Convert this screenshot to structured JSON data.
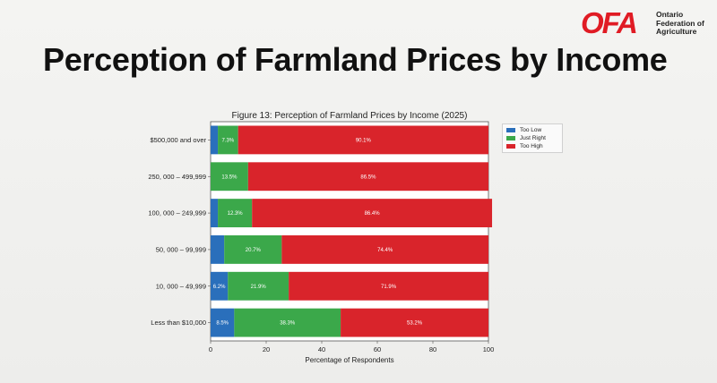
{
  "slide": {
    "title": "Perception of Farmland Prices by Income",
    "logo": {
      "mark": "OFA",
      "line1": "Ontario",
      "line2": "Federation of",
      "line3": "Agriculture"
    }
  },
  "chart_data": {
    "type": "bar",
    "orientation": "horizontal",
    "stacked": true,
    "title": "Figure 13: Perception of Farmland Prices by Income (2025)",
    "xlabel": "Percentage of Respondents",
    "ylabel": "",
    "xlim": [
      0,
      100
    ],
    "xticks": [
      0,
      20,
      40,
      60,
      80,
      100
    ],
    "grid": false,
    "legend_position": "top-right",
    "categories": [
      "$500,000 and over",
      "250, 000 – 499,999",
      "100, 000 – 249,999",
      "50, 000 – 99,999",
      "10, 000 – 49,999",
      "Less than $10,000"
    ],
    "series": [
      {
        "name": "Too Low",
        "color": "#2a6fbb",
        "values": [
          2.6,
          0.0,
          2.6,
          4.9,
          6.2,
          8.5
        ],
        "labels": [
          "",
          "",
          "",
          "",
          "6.2%",
          "8.5%"
        ]
      },
      {
        "name": "Just Right",
        "color": "#3ba84a",
        "values": [
          7.3,
          13.5,
          12.3,
          20.7,
          21.9,
          38.3
        ],
        "labels": [
          "7.3%",
          "13.5%",
          "12.3%",
          "20.7%",
          "21.9%",
          "38.3%"
        ]
      },
      {
        "name": "Too High",
        "color": "#d9242b",
        "values": [
          90.1,
          86.5,
          86.4,
          74.4,
          71.9,
          53.2
        ],
        "labels": [
          "90.1%",
          "86.5%",
          "86.4%",
          "74.4%",
          "71.9%",
          "53.2%"
        ]
      }
    ]
  }
}
